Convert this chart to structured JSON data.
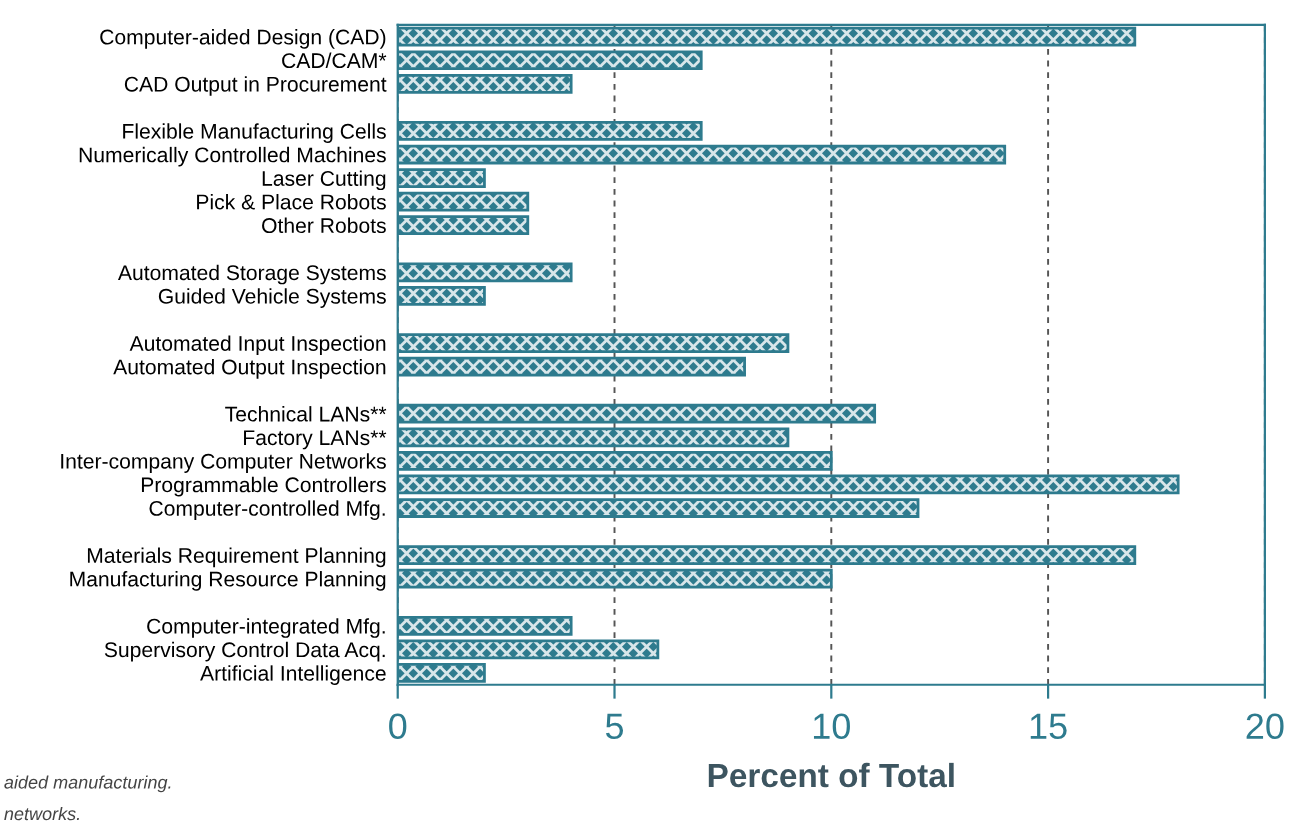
{
  "chart_data": {
    "type": "bar",
    "orientation": "horizontal",
    "categories": [
      "Computer-aided Design (CAD)",
      "CAD/CAM*",
      "CAD Output in Procurement",
      null,
      "Flexible Manufacturing Cells",
      "Numerically Controlled Machines",
      "Laser Cutting",
      "Pick & Place Robots",
      "Other Robots",
      null,
      "Automated Storage Systems",
      "Guided Vehicle Systems",
      null,
      "Automated Input Inspection",
      "Automated Output Inspection",
      null,
      "Technical LANs**",
      "Factory LANs**",
      "Inter-company Computer Networks",
      "Programmable Controllers",
      "Computer-controlled Mfg.",
      null,
      "Materials Requirement Planning",
      "Manufacturing Resource Planning",
      null,
      "Computer-integrated Mfg.",
      "Supervisory Control Data Acq.",
      "Artificial Intelligence"
    ],
    "values": [
      17,
      7,
      4,
      null,
      7,
      14,
      2,
      3,
      3,
      null,
      4,
      2,
      null,
      9,
      8,
      null,
      11,
      9,
      10,
      18,
      12,
      null,
      17,
      10,
      null,
      4,
      6,
      2
    ],
    "color": "#2e7b8e",
    "xlim": [
      0,
      20
    ],
    "xticks": [
      0,
      5,
      10,
      15,
      20
    ],
    "grid": "x",
    "xlabel": "Percent of Total",
    "annotations": [
      "aided manufacturing.",
      "networks."
    ]
  }
}
